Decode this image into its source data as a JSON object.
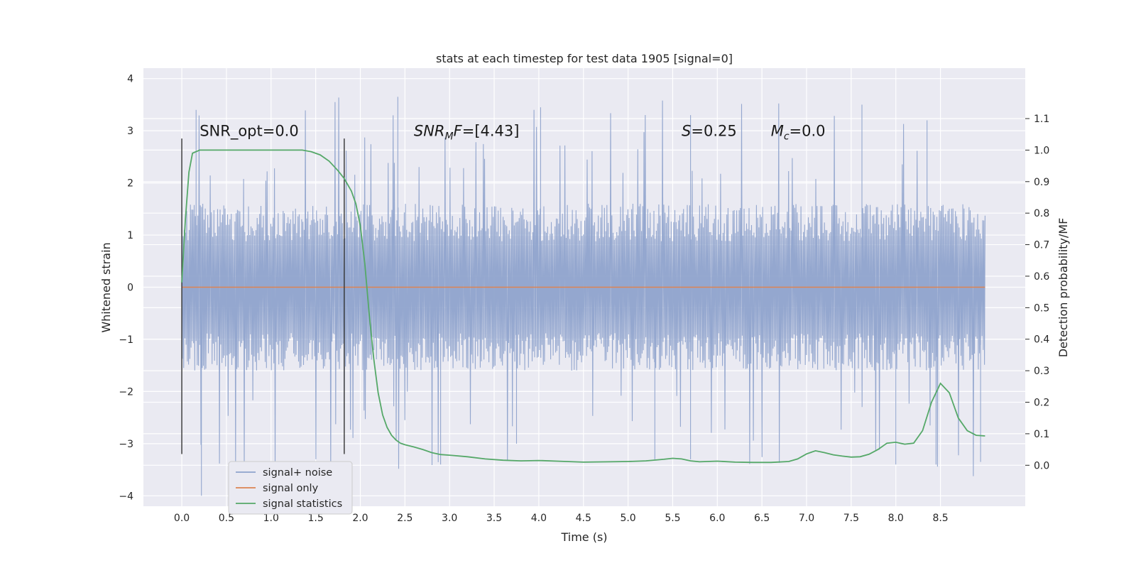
{
  "chart_data": {
    "type": "line",
    "title": "stats at each timestep for test data 1905 [signal=0]",
    "xlabel": "Time (s)",
    "ylabel": "Whitened strain",
    "y2label": "Detection probability/MF",
    "xlim": [
      -0.43,
      9.45
    ],
    "ylim": [
      -4.2,
      4.2
    ],
    "y2lim": [
      -0.13,
      1.26
    ],
    "x_ticks": [
      0.0,
      0.5,
      1.0,
      1.5,
      2.0,
      2.5,
      3.0,
      3.5,
      4.0,
      4.5,
      5.0,
      5.5,
      6.0,
      6.5,
      7.0,
      7.5,
      8.0,
      8.5
    ],
    "x_tick_labels": [
      "0.0",
      "0.5",
      "1.0",
      "1.5",
      "2.0",
      "2.5",
      "3.0",
      "3.5",
      "4.0",
      "4.5",
      "5.0",
      "5.5",
      "6.0",
      "6.5",
      "7.0",
      "7.5",
      "8.0",
      "8.5"
    ],
    "y_ticks": [
      -4,
      -3,
      -2,
      -1,
      0,
      1,
      2,
      3,
      4
    ],
    "y_tick_labels": [
      "−4",
      "−3",
      "−2",
      "−1",
      "0",
      "1",
      "2",
      "3",
      "4"
    ],
    "y2_ticks": [
      0.0,
      0.1,
      0.2,
      0.3,
      0.4,
      0.5,
      0.6,
      0.7,
      0.8,
      0.9,
      1.0,
      1.1
    ],
    "y2_tick_labels": [
      "0.0",
      "0.1",
      "0.2",
      "0.3",
      "0.4",
      "0.5",
      "0.6",
      "0.7",
      "0.8",
      "0.9",
      "1.0",
      "1.1"
    ],
    "series": [
      {
        "name": "signal+ noise",
        "color": "#8fa3cc",
        "description": "whitened noise, roughly uniform band -1.6..1.6 with spikes to about +/-3.5",
        "x_range": [
          0.0,
          9.0
        ],
        "typical_amplitude": 1.6,
        "peak_amplitude": 3.65,
        "min_value": -4.0,
        "max_value": 3.65
      },
      {
        "name": "signal only",
        "color": "#dd8452",
        "x": [
          0.0,
          9.0
        ],
        "y": [
          0.0,
          0.0
        ]
      },
      {
        "name": "signal statistics",
        "color": "#55a868",
        "axis": "right",
        "x": [
          0.0,
          0.04,
          0.08,
          0.12,
          0.2,
          0.3,
          0.5,
          0.8,
          1.0,
          1.2,
          1.35,
          1.45,
          1.55,
          1.65,
          1.75,
          1.82,
          1.9,
          1.95,
          2.0,
          2.05,
          2.1,
          2.15,
          2.2,
          2.25,
          2.3,
          2.35,
          2.4,
          2.45,
          2.5,
          2.6,
          2.7,
          2.8,
          2.9,
          3.0,
          3.2,
          3.4,
          3.6,
          3.8,
          4.0,
          4.2,
          4.5,
          4.8,
          5.0,
          5.2,
          5.4,
          5.5,
          5.6,
          5.7,
          5.8,
          6.0,
          6.2,
          6.4,
          6.6,
          6.8,
          6.9,
          7.0,
          7.1,
          7.2,
          7.3,
          7.4,
          7.5,
          7.6,
          7.7,
          7.8,
          7.9,
          8.0,
          8.1,
          8.2,
          8.3,
          8.4,
          8.5,
          8.6,
          8.7,
          8.8,
          8.9,
          9.0
        ],
        "y": [
          0.58,
          0.78,
          0.93,
          0.99,
          1.0,
          1.0,
          1.0,
          1.0,
          1.0,
          1.0,
          1.0,
          0.995,
          0.985,
          0.965,
          0.935,
          0.91,
          0.87,
          0.83,
          0.76,
          0.64,
          0.48,
          0.34,
          0.23,
          0.16,
          0.12,
          0.095,
          0.08,
          0.07,
          0.065,
          0.058,
          0.05,
          0.04,
          0.034,
          0.032,
          0.027,
          0.02,
          0.016,
          0.014,
          0.015,
          0.013,
          0.01,
          0.011,
          0.012,
          0.014,
          0.019,
          0.022,
          0.02,
          0.014,
          0.011,
          0.013,
          0.01,
          0.009,
          0.009,
          0.012,
          0.02,
          0.036,
          0.046,
          0.04,
          0.033,
          0.029,
          0.026,
          0.027,
          0.035,
          0.05,
          0.07,
          0.073,
          0.067,
          0.07,
          0.11,
          0.2,
          0.26,
          0.23,
          0.15,
          0.11,
          0.095,
          0.093
        ]
      }
    ],
    "vlines": [
      {
        "x": 0.0,
        "y_range": [
          -3.2,
          2.85
        ],
        "color": "#333333"
      },
      {
        "x": 1.82,
        "y_range": [
          -3.2,
          2.85
        ],
        "color": "#333333"
      }
    ],
    "annotations": [
      {
        "name": "snr-opt",
        "text": "SNR_opt=0.0",
        "x": 0.2,
        "y": 2.9
      },
      {
        "name": "snr-mf",
        "prefix": "SNR",
        "sub": "M",
        "suffix": "F=[4.43]",
        "x": 2.6,
        "y": 2.9
      },
      {
        "name": "s-value",
        "prefix": "S",
        "sub": "",
        "suffix": "=0.25",
        "x": 5.6,
        "y": 2.9
      },
      {
        "name": "mc-value",
        "prefix": "M",
        "sub": "c",
        "suffix": "=0.0",
        "x": 6.6,
        "y": 2.9
      }
    ],
    "legend": {
      "location": "lower-left",
      "entries": [
        {
          "label": "signal+ noise",
          "color": "#8fa3cc"
        },
        {
          "label": "signal only",
          "color": "#dd8452"
        },
        {
          "label": "signal statistics",
          "color": "#55a868"
        }
      ]
    },
    "grid": true,
    "background": "#eaeaf2"
  }
}
